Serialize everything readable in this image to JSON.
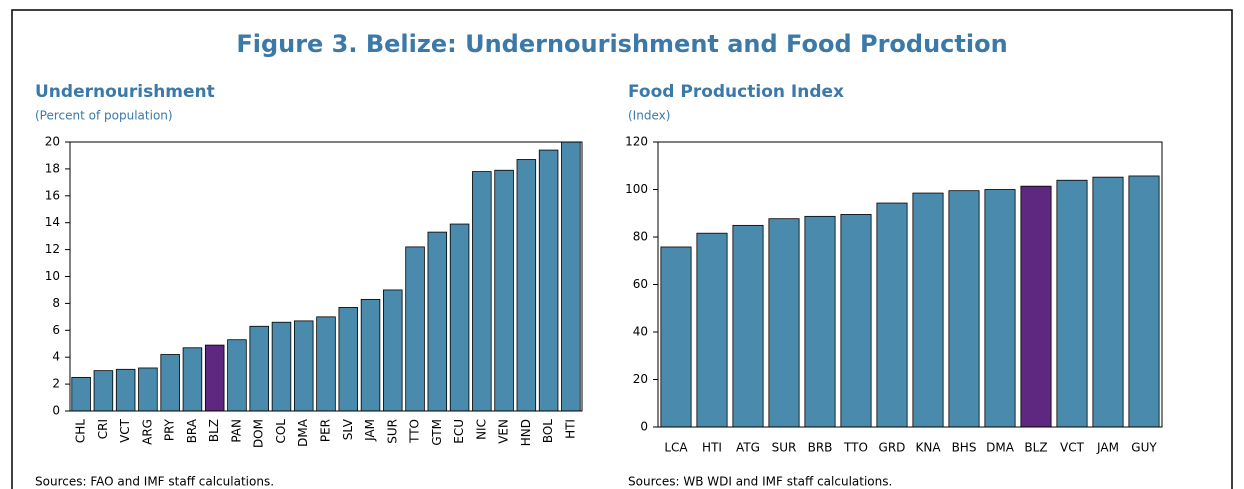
{
  "title": "Figure 3. Belize: Undernourishment and Food Production",
  "chart_data": [
    {
      "type": "bar",
      "title": "Undernourishment",
      "subtitle": "(Percent of population)",
      "categories": [
        "CHL",
        "CRI",
        "VCT",
        "ARG",
        "PRY",
        "BRA",
        "BLZ",
        "PAN",
        "DOM",
        "COL",
        "DMA",
        "PER",
        "SLV",
        "JAM",
        "SUR",
        "TTO",
        "GTM",
        "ECU",
        "NIC",
        "VEN",
        "HND",
        "BOL",
        "HTI"
      ],
      "values": [
        2.5,
        3.0,
        3.1,
        3.2,
        4.2,
        4.7,
        4.9,
        5.3,
        6.3,
        6.6,
        6.7,
        7.0,
        7.7,
        8.3,
        9.0,
        12.2,
        13.3,
        13.9,
        17.8,
        17.9,
        18.7,
        19.4,
        20.0
      ],
      "colors": [
        "#4a8bad",
        "#4a8bad",
        "#4a8bad",
        "#4a8bad",
        "#4a8bad",
        "#4a8bad",
        "#5e2780",
        "#4a8bad",
        "#4a8bad",
        "#4a8bad",
        "#4a8bad",
        "#4a8bad",
        "#4a8bad",
        "#4a8bad",
        "#4a8bad",
        "#4a8bad",
        "#4a8bad",
        "#4a8bad",
        "#4a8bad",
        "#4a8bad",
        "#4a8bad",
        "#4a8bad",
        "#4a8bad"
      ],
      "ylim": [
        0,
        20
      ],
      "yticks": [
        0,
        2,
        4,
        6,
        8,
        10,
        12,
        14,
        16,
        18,
        20
      ],
      "source": "Sources: FAO and IMF staff calculations."
    },
    {
      "type": "bar",
      "title": "Food Production Index",
      "subtitle": "(Index)",
      "categories": [
        "LCA",
        "HTI",
        "ATG",
        "SUR",
        "BRB",
        "TTO",
        "GRD",
        "KNA",
        "BHS",
        "DMA",
        "BLZ",
        "VCT",
        "JAM",
        "GUY"
      ],
      "values": [
        75.8,
        81.6,
        84.9,
        87.7,
        88.7,
        89.5,
        94.3,
        98.5,
        99.5,
        100.0,
        101.4,
        103.9,
        105.2,
        105.7
      ],
      "colors": [
        "#4a8bad",
        "#4a8bad",
        "#4a8bad",
        "#4a8bad",
        "#4a8bad",
        "#4a8bad",
        "#4a8bad",
        "#4a8bad",
        "#4a8bad",
        "#4a8bad",
        "#5e2780",
        "#4a8bad",
        "#4a8bad",
        "#4a8bad"
      ],
      "ylim": [
        0,
        120
      ],
      "yticks": [
        0,
        20,
        40,
        60,
        80,
        100,
        120
      ],
      "source": "Sources: WB WDI and IMF staff calculations."
    }
  ]
}
